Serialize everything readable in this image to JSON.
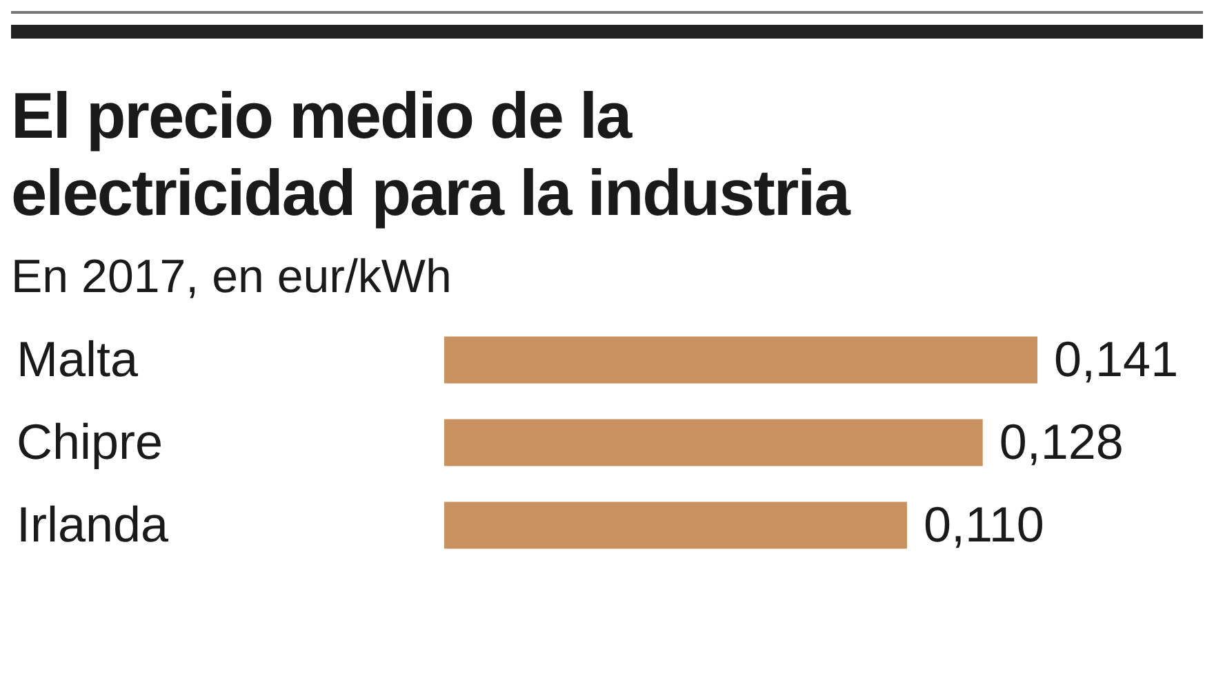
{
  "chart_data": {
    "type": "bar",
    "orientation": "horizontal",
    "title": "El precio medio de la electricidad para la industria",
    "subtitle": "En 2017, en eur/kWh",
    "categories": [
      "Malta",
      "Chipre",
      "Irlanda"
    ],
    "values": [
      0.141,
      0.128,
      0.11
    ],
    "value_labels": [
      "0,141",
      "0,128",
      "0,110"
    ],
    "color": "#c8915f"
  }
}
